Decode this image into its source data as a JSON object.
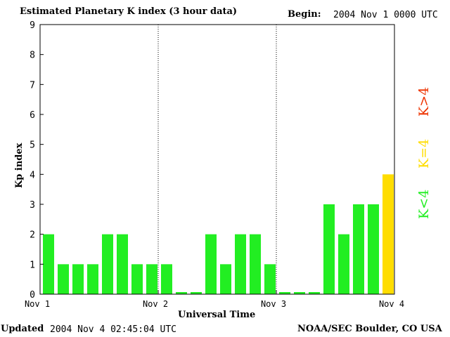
{
  "header": {
    "title": "Estimated Planetary K index (3 hour data)",
    "begin_label": "Begin:",
    "begin_value": "2004 Nov 1 0000 UTC"
  },
  "footer": {
    "updated_label": "Updated",
    "updated_value": "2004 Nov  4 02:45:04 UTC",
    "credit": "NOAA/SEC Boulder, CO USA"
  },
  "legend": {
    "low": "K<4",
    "equal": "K=4",
    "high": "K>4"
  },
  "colors": {
    "low": "#22ee22",
    "equal": "#ffdd00",
    "high": "#ee3300",
    "frame": "#000000"
  },
  "chart_data": {
    "type": "bar",
    "title": "Estimated Planetary K index (3 hour data)",
    "xlabel": "Universal Time",
    "ylabel": "Kp index",
    "ylim": [
      0,
      9
    ],
    "yticks": [
      "0",
      "1",
      "2",
      "3",
      "4",
      "5",
      "6",
      "7",
      "8",
      "9"
    ],
    "xticks": [
      "Nov 1",
      "Nov 2",
      "Nov 3",
      "Nov 4"
    ],
    "day_dividers": [
      "Nov 2",
      "Nov 3"
    ],
    "bar_interval": "3 hours",
    "values": [
      2,
      1,
      1,
      1,
      2,
      2,
      1,
      1,
      1,
      0,
      0,
      2,
      1,
      2,
      2,
      1,
      0,
      0,
      0,
      3,
      2,
      3,
      3,
      4
    ],
    "grid": false
  }
}
